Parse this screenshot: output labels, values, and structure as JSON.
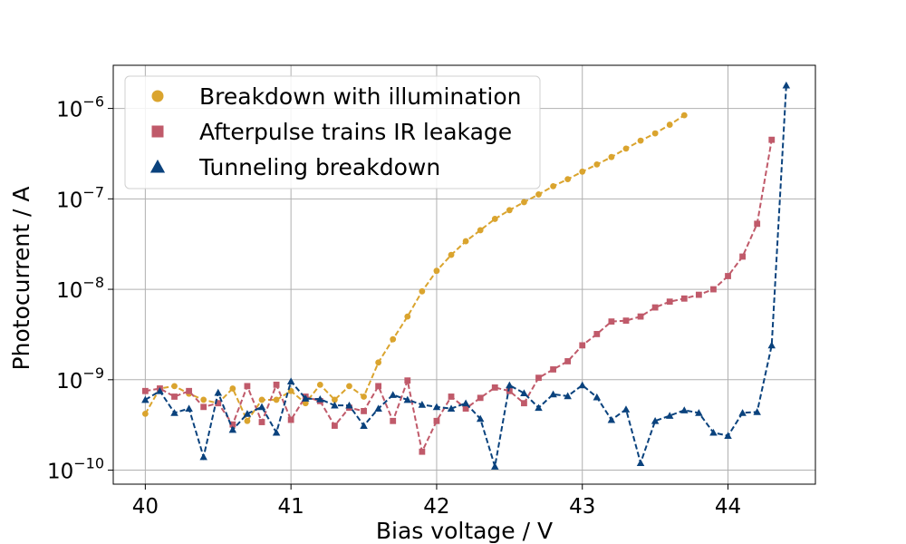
{
  "chart_data": {
    "type": "line",
    "xlabel": "Bias voltage / V",
    "ylabel": "Photocurrent / A",
    "xlim": [
      39.78,
      44.6
    ],
    "ylim": [
      7e-11,
      3e-06
    ],
    "yscale": "log",
    "grid": true,
    "legend_position": "top-left",
    "x_ticks": [
      40,
      41,
      42,
      43,
      44
    ],
    "x_tick_labels": [
      "40",
      "41",
      "42",
      "43",
      "44"
    ],
    "y_ticks": [
      1e-10,
      1e-09,
      1e-08,
      1e-07,
      1e-06
    ],
    "y_tick_labels": [
      {
        "base": "10",
        "exp": "−10"
      },
      {
        "base": "10",
        "exp": "−9"
      },
      {
        "base": "10",
        "exp": "−8"
      },
      {
        "base": "10",
        "exp": "−7"
      },
      {
        "base": "10",
        "exp": "−6"
      }
    ],
    "series": [
      {
        "name": "Breakdown with illumination",
        "color": "#DAA42E",
        "marker": "circle",
        "x": [
          40.0,
          40.1,
          40.2,
          40.3,
          40.4,
          40.5,
          40.6,
          40.7,
          40.8,
          40.9,
          41.0,
          41.1,
          41.2,
          41.3,
          41.4,
          41.5,
          41.6,
          41.7,
          41.8,
          41.9,
          42.0,
          42.1,
          42.2,
          42.3,
          42.4,
          42.5,
          42.6,
          42.7,
          42.8,
          42.9,
          43.0,
          43.1,
          43.2,
          43.3,
          43.4,
          43.5,
          43.6,
          43.7
        ],
        "y": [
          4.2e-10,
          8e-10,
          8.5e-10,
          7e-10,
          6e-10,
          5.5e-10,
          8e-10,
          3.5e-10,
          6e-10,
          6e-10,
          7.5e-10,
          5.5e-10,
          8.8e-10,
          6e-10,
          8.5e-10,
          6.5e-10,
          1.55e-09,
          2.8e-09,
          5e-09,
          9.5e-09,
          1.6e-08,
          2.4e-08,
          3.4e-08,
          4.5e-08,
          6e-08,
          7.5e-08,
          9.2e-08,
          1.12e-07,
          1.38e-07,
          1.65e-07,
          2e-07,
          2.4e-07,
          2.9e-07,
          3.6e-07,
          4.4e-07,
          5.3e-07,
          6.6e-07,
          8.4e-07
        ]
      },
      {
        "name": "Afterpulse trains IR leakage",
        "color": "#C05A6A",
        "marker": "square",
        "x": [
          40.0,
          40.1,
          40.2,
          40.3,
          40.4,
          40.5,
          40.6,
          40.7,
          40.8,
          40.9,
          41.0,
          41.1,
          41.2,
          41.3,
          41.4,
          41.5,
          41.6,
          41.7,
          41.8,
          41.9,
          42.0,
          42.1,
          42.2,
          42.3,
          42.4,
          42.5,
          42.6,
          42.7,
          42.8,
          42.9,
          43.0,
          43.1,
          43.2,
          43.3,
          43.4,
          43.5,
          43.6,
          43.7,
          43.8,
          43.9,
          44.0,
          44.1,
          44.2,
          44.3
        ],
        "y": [
          7.5e-10,
          8e-10,
          6.5e-10,
          7.5e-10,
          5e-10,
          5.5e-10,
          3.2e-10,
          8.5e-10,
          3.4e-10,
          8.8e-10,
          3.6e-10,
          6.5e-10,
          5.8e-10,
          3.1e-10,
          4.9e-10,
          4.5e-10,
          8.5e-10,
          3.5e-10,
          9.8e-10,
          1.6e-10,
          3.5e-10,
          6.5e-10,
          4.8e-10,
          6.3e-10,
          8.2e-10,
          7.5e-10,
          5.5e-10,
          1.05e-09,
          1.3e-09,
          1.6e-09,
          2.4e-09,
          3.2e-09,
          4.4e-09,
          4.5e-09,
          5e-09,
          6.3e-09,
          7.3e-09,
          7.9e-09,
          8.7e-09,
          1e-08,
          1.4e-08,
          2.3e-08,
          5.3e-08,
          4.5e-07
        ]
      },
      {
        "name": "Tunneling breakdown",
        "color": "#0A427D",
        "marker": "triangle",
        "x": [
          40.0,
          40.1,
          40.2,
          40.3,
          40.4,
          40.5,
          40.6,
          40.7,
          40.8,
          40.9,
          41.0,
          41.1,
          41.2,
          41.3,
          41.4,
          41.5,
          41.6,
          41.7,
          41.8,
          41.9,
          42.0,
          42.1,
          42.2,
          42.3,
          42.4,
          42.5,
          42.6,
          42.7,
          42.8,
          42.9,
          43.0,
          43.1,
          43.2,
          43.3,
          43.4,
          43.5,
          43.6,
          43.7,
          43.8,
          43.9,
          44.0,
          44.1,
          44.2,
          44.3,
          44.4
        ],
        "y": [
          6e-10,
          7.5e-10,
          4.3e-10,
          4.8e-10,
          1.4e-10,
          7.2e-10,
          2.8e-10,
          4.2e-10,
          5e-10,
          2.6e-10,
          9.6e-10,
          6.2e-10,
          6.1e-10,
          5.2e-10,
          5.2e-10,
          3.1e-10,
          4.8e-10,
          6.8e-10,
          6e-10,
          5.3e-10,
          5e-10,
          4.8e-10,
          5.5e-10,
          3.7e-10,
          1.1e-10,
          8.7e-10,
          7.1e-10,
          4.9e-10,
          6.9e-10,
          6.6e-10,
          8.7e-10,
          6.4e-10,
          3.6e-10,
          4.7e-10,
          1.2e-10,
          3.5e-10,
          4e-10,
          4.6e-10,
          4.3e-10,
          2.6e-10,
          2.4e-10,
          4.3e-10,
          4.4e-10,
          2.4e-09,
          1.8e-06
        ]
      }
    ]
  }
}
